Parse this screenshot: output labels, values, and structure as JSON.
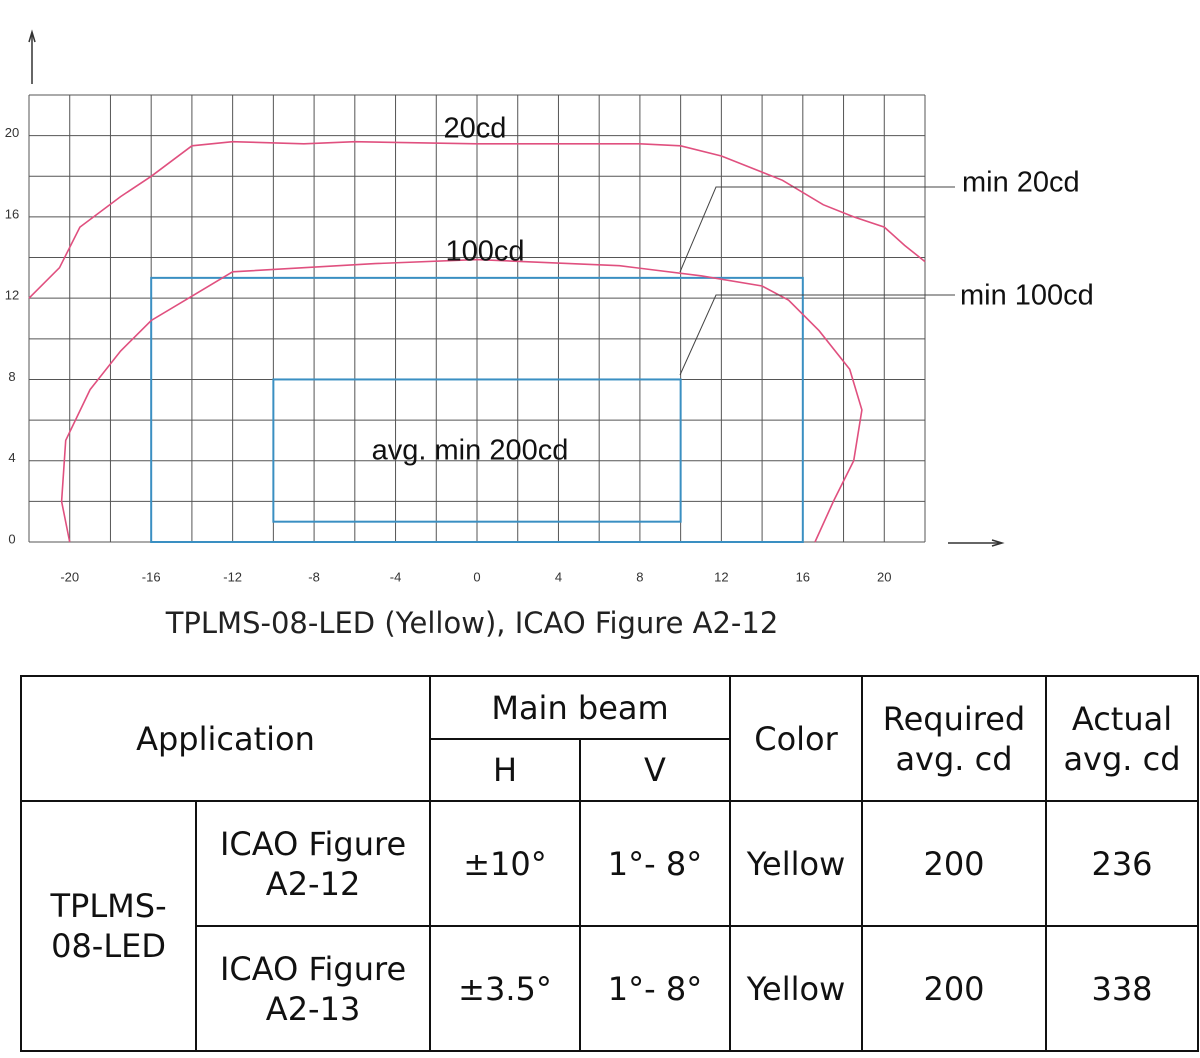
{
  "chart_data": {
    "type": "contour",
    "xlim": [
      -22,
      22
    ],
    "ylim": [
      0,
      22
    ],
    "xticks": [
      -20,
      -16,
      -12,
      -8,
      -4,
      0,
      4,
      8,
      12,
      16,
      20
    ],
    "yticks": [
      0,
      4,
      8,
      12,
      16,
      20
    ],
    "grid": true,
    "series": [
      {
        "name": "20cd",
        "color": "#e0507f",
        "x": [
          -22,
          -20.5,
          -19.5,
          -17.5,
          -16,
          -14,
          -12,
          -8.5,
          -6,
          0,
          8,
          10,
          12,
          15,
          17,
          18.5,
          20,
          21,
          22
        ],
        "values": [
          12,
          13.5,
          15.5,
          17,
          18,
          19.5,
          19.7,
          19.6,
          19.7,
          19.6,
          19.6,
          19.5,
          19,
          17.8,
          16.6,
          16,
          15.5,
          14.6,
          13.8
        ]
      },
      {
        "name": "100cd",
        "color": "#e0507f",
        "x": [
          -20,
          -20.4,
          -20.2,
          -19,
          -17.5,
          -16,
          -14,
          -12,
          -8.5,
          -5,
          0,
          7,
          11,
          14,
          15.3,
          16.8,
          18.3,
          18.9,
          18.5,
          17.5,
          16.6
        ],
        "values": [
          0,
          2,
          5,
          7.5,
          9.4,
          10.9,
          12.1,
          13.3,
          13.5,
          13.7,
          13.9,
          13.6,
          13.1,
          12.6,
          11.9,
          10.4,
          8.5,
          6.5,
          4,
          2,
          0
        ]
      }
    ],
    "regions": [
      {
        "name": "min 20cd",
        "color": "#3a8fc2",
        "x": [
          -16,
          16
        ],
        "y": [
          0,
          13
        ]
      },
      {
        "name": "min 100cd",
        "color": "#3a8fc2",
        "x": [
          -10,
          10
        ],
        "y": [
          1,
          8
        ]
      }
    ],
    "annotation": "avg. min 200cd",
    "caption": "TPLMS-08-LED (Yellow), ICAO Figure A2-12"
  },
  "table": {
    "header": {
      "application": "Application",
      "main_beam": "Main beam",
      "h": "H",
      "v": "V",
      "color": "Color",
      "required": "Required avg. cd",
      "actual": "Actual avg. cd"
    },
    "product": "TPLMS-08-LED",
    "rows": [
      [
        "ICAO Figure A2-12",
        "±10°",
        "1°- 8°",
        "Yellow",
        200,
        236
      ],
      [
        "ICAO Figure A2-13",
        "±3.5°",
        "1°- 8°",
        "Yellow",
        200,
        338
      ]
    ]
  }
}
